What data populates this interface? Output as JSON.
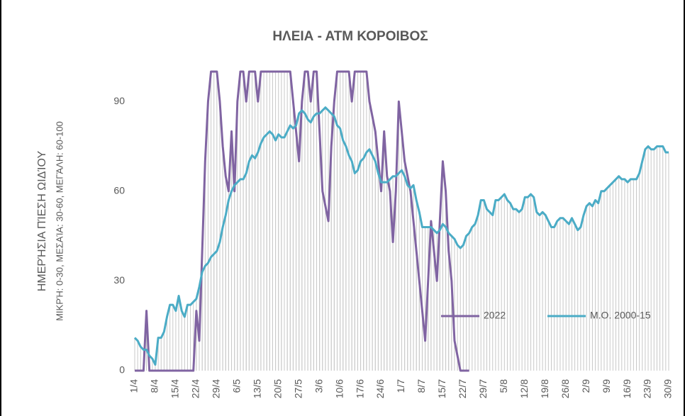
{
  "chart_data": {
    "type": "line",
    "title": "ΗΛΕΙΑ - ΑΤΜ  ΚΟΡΟΙΒΟΣ",
    "y_label": "ΗΜΕΡΉΣΙΑ ΠΊΕΣΗ ΩΙΔΊΟΥ",
    "y_sublabel": "ΜΙΚΡΉ: 0-30, ΜΕΣΑΊΑ: 30-60, ΜΕΓΆΛΗ: 60-100",
    "categories": [
      "1/4",
      null,
      null,
      null,
      null,
      null,
      null,
      "8/4",
      null,
      null,
      null,
      null,
      null,
      null,
      "15/4",
      null,
      null,
      null,
      null,
      null,
      null,
      "22/4",
      null,
      null,
      null,
      null,
      null,
      null,
      "29/4",
      null,
      null,
      null,
      null,
      null,
      null,
      "6/5",
      null,
      null,
      null,
      null,
      null,
      null,
      "13/5",
      null,
      null,
      null,
      null,
      null,
      null,
      "20/5",
      null,
      null,
      null,
      null,
      null,
      null,
      "27/5",
      null,
      null,
      null,
      null,
      null,
      null,
      "3/6",
      null,
      null,
      null,
      null,
      null,
      null,
      "10/6",
      null,
      null,
      null,
      null,
      null,
      null,
      "17/6",
      null,
      null,
      null,
      null,
      null,
      null,
      "24/6",
      null,
      null,
      null,
      null,
      null,
      null,
      "1/7",
      null,
      null,
      null,
      null,
      null,
      null,
      "8/7",
      null,
      null,
      null,
      null,
      null,
      null,
      "15/7",
      null,
      null,
      null,
      null,
      null,
      null,
      "22/7",
      null,
      null,
      null,
      null,
      null,
      null,
      "29/7",
      null,
      null,
      null,
      null,
      null,
      null,
      "5/8",
      null,
      null,
      null,
      null,
      null,
      null,
      "12/8",
      null,
      null,
      null,
      null,
      null,
      null,
      "19/8",
      null,
      null,
      null,
      null,
      null,
      null,
      "26/8",
      null,
      null,
      null,
      null,
      null,
      null,
      "2/9",
      null,
      null,
      null,
      null,
      null,
      null,
      "9/9",
      null,
      null,
      null,
      null,
      null,
      null,
      "16/9",
      null,
      null,
      null,
      null,
      null,
      null,
      "23/9",
      null,
      null,
      null,
      null,
      null,
      null,
      "30/9"
    ],
    "series": [
      {
        "name": "2022",
        "color": "#8064a2",
        "values": [
          0,
          0,
          0,
          0,
          20,
          0,
          0,
          0,
          0,
          0,
          0,
          0,
          0,
          0,
          0,
          0,
          0,
          0,
          0,
          0,
          0,
          20,
          10,
          40,
          70,
          90,
          100,
          100,
          100,
          90,
          75,
          65,
          60,
          80,
          60,
          90,
          100,
          100,
          90,
          100,
          100,
          100,
          90,
          100,
          100,
          100,
          100,
          100,
          100,
          100,
          100,
          100,
          100,
          100,
          90,
          80,
          70,
          90,
          100,
          100,
          90,
          100,
          100,
          80,
          60,
          55,
          50,
          75,
          90,
          100,
          100,
          100,
          100,
          100,
          90,
          100,
          100,
          100,
          100,
          100,
          90,
          85,
          80,
          70,
          60,
          80,
          65,
          60,
          43,
          60,
          90,
          80,
          70,
          65,
          60,
          50,
          40,
          30,
          20,
          10,
          30,
          50,
          40,
          30,
          50,
          70,
          60,
          40,
          30,
          10,
          5,
          0,
          0,
          0,
          0,
          null,
          null,
          null,
          null,
          null,
          null,
          null,
          null,
          null,
          null,
          null,
          null,
          null,
          null,
          null,
          null,
          null,
          null,
          null,
          null,
          null,
          null,
          null,
          null,
          null,
          null,
          null,
          null,
          null,
          null,
          null,
          null,
          null,
          null,
          null,
          null,
          null,
          null,
          null,
          null,
          null,
          null,
          null,
          null,
          null,
          null,
          null,
          null,
          null,
          null,
          null,
          null,
          null,
          null,
          null,
          null,
          null,
          null,
          null,
          null,
          null,
          null,
          null,
          null,
          null,
          null,
          null,
          null
        ]
      },
      {
        "name": "Μ.Ο. 2000-15",
        "color": "#4bacc6",
        "values": [
          11,
          10,
          8,
          7,
          7,
          5,
          4,
          2,
          11,
          11,
          13,
          18,
          22,
          22,
          20,
          25,
          20,
          18,
          22,
          22,
          23,
          24,
          28,
          33,
          35,
          36,
          38,
          39,
          40,
          43,
          48,
          52,
          57,
          60,
          62,
          63,
          64,
          64,
          66,
          70,
          72,
          71,
          73,
          76,
          78,
          79,
          80,
          79,
          77,
          79,
          78,
          78,
          80,
          82,
          81,
          82,
          86,
          87,
          86,
          84,
          83,
          85,
          86,
          86,
          87,
          88,
          87,
          86,
          85,
          82,
          81,
          77,
          75,
          72,
          70,
          66,
          67,
          70,
          71,
          73,
          74,
          72,
          70,
          66,
          63,
          63,
          63,
          64,
          65,
          65,
          66,
          67,
          65,
          62,
          61,
          62,
          57,
          53,
          48,
          48,
          48,
          48,
          47,
          46,
          47,
          49,
          48,
          46,
          45,
          44,
          42,
          41,
          42,
          45,
          46,
          48,
          49,
          52,
          57,
          57,
          54,
          53,
          52,
          57,
          57,
          58,
          59,
          57,
          56,
          54,
          54,
          53,
          54,
          58,
          58,
          59,
          58,
          53,
          52,
          53,
          52,
          50,
          48,
          48,
          50,
          51,
          51,
          50,
          49,
          51,
          49,
          47,
          48,
          52,
          55,
          56,
          55,
          57,
          56,
          60,
          60,
          61,
          62,
          63,
          64,
          65,
          64,
          64,
          63,
          64,
          64,
          64,
          66,
          70,
          74,
          75,
          74,
          74,
          75,
          75,
          75,
          73,
          73
        ]
      }
    ],
    "ylim": [
      0,
      100
    ],
    "yticks": [
      0,
      30,
      60,
      90
    ],
    "grid": false,
    "drop_lines": true,
    "legend": "lower-right"
  }
}
